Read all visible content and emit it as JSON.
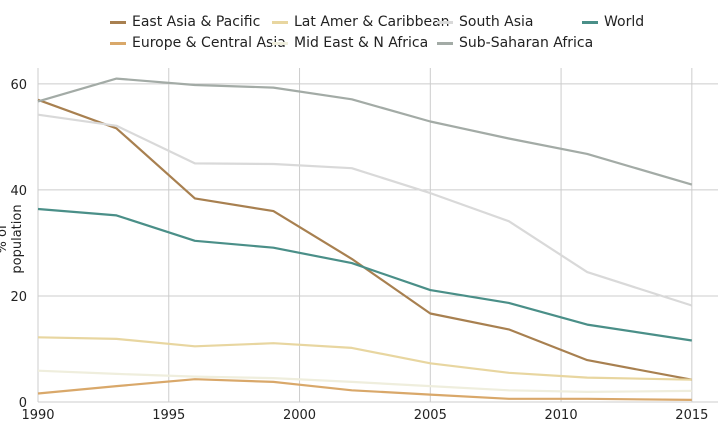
{
  "chart_data": {
    "type": "line",
    "title": "",
    "xlabel": "",
    "ylabel": "% of population",
    "xlim": [
      1990,
      2016
    ],
    "ylim": [
      0,
      63
    ],
    "x_ticks": [
      1990,
      1995,
      2000,
      2005,
      2010,
      2015
    ],
    "y_ticks": [
      0,
      20,
      40,
      60
    ],
    "grid": true,
    "legend_position": "top",
    "series": [
      {
        "name": "East Asia & Pacific",
        "color": "#a88050",
        "x": [
          1990,
          1993,
          1996,
          1999,
          2002,
          2005,
          2008,
          2011,
          2015
        ],
        "y": [
          57.0,
          51.6,
          38.4,
          36.0,
          27.0,
          16.7,
          13.7,
          7.9,
          4.2
        ]
      },
      {
        "name": "Europe & Central Asia",
        "color": "#d9a86a",
        "x": [
          1990,
          1993,
          1996,
          1999,
          2002,
          2005,
          2008,
          2011,
          2015
        ],
        "y": [
          1.6,
          3.0,
          4.3,
          3.8,
          2.2,
          1.4,
          0.6,
          0.6,
          0.4
        ]
      },
      {
        "name": "Lat Amer & Caribbean",
        "color": "#e8d6a0",
        "x": [
          1990,
          1993,
          1996,
          1999,
          2002,
          2005,
          2008,
          2011,
          2015
        ],
        "y": [
          12.2,
          11.9,
          10.5,
          11.1,
          10.2,
          7.3,
          5.5,
          4.6,
          4.2
        ]
      },
      {
        "name": "Mid East & N Africa",
        "color": "#efeedd",
        "x": [
          1990,
          1993,
          1996,
          1999,
          2002,
          2005,
          2008,
          2011,
          2015
        ],
        "y": [
          5.9,
          5.3,
          4.8,
          4.5,
          3.8,
          3.0,
          2.2,
          1.9,
          2.1
        ]
      },
      {
        "name": "South Asia",
        "color": "#d9d9d9",
        "x": [
          1990,
          1993,
          1996,
          1999,
          2002,
          2005,
          2008,
          2011,
          2015
        ],
        "y": [
          54.2,
          52.1,
          45.0,
          44.9,
          44.1,
          39.4,
          34.1,
          24.5,
          18.2
        ]
      },
      {
        "name": "Sub-Saharan Africa",
        "color": "#a3aba6",
        "x": [
          1990,
          1993,
          1996,
          1999,
          2002,
          2005,
          2008,
          2011,
          2015
        ],
        "y": [
          56.7,
          61.0,
          59.8,
          59.3,
          57.1,
          52.9,
          49.7,
          46.8,
          41.0
        ]
      },
      {
        "name": "World",
        "color": "#4a8f88",
        "x": [
          1990,
          1993,
          1996,
          1999,
          2002,
          2005,
          2008,
          2011,
          2015
        ],
        "y": [
          36.4,
          35.2,
          30.4,
          29.1,
          26.2,
          21.1,
          18.7,
          14.6,
          11.6
        ]
      }
    ]
  }
}
